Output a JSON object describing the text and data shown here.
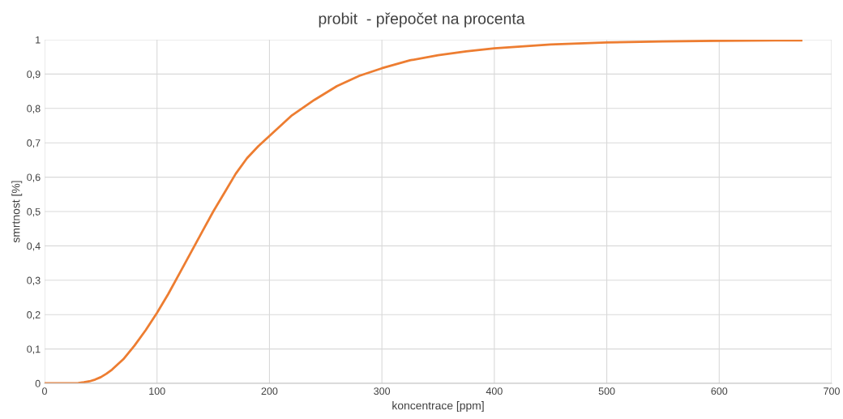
{
  "chart_data": {
    "type": "line",
    "title": "probit  - přepočet na procenta",
    "xlabel": "koncentrace [ppm]",
    "ylabel": "smrtnost [%]",
    "series": [
      {
        "color": "#ed7d31",
        "x": [
          0,
          10,
          20,
          30,
          35,
          40,
          45,
          50,
          55,
          60,
          70,
          80,
          90,
          100,
          110,
          120,
          130,
          140,
          150,
          160,
          170,
          180,
          190,
          200,
          220,
          240,
          260,
          280,
          300,
          325,
          350,
          375,
          400,
          450,
          500,
          550,
          600,
          650,
          673
        ],
        "values": [
          0,
          0,
          0,
          0.001,
          0.003,
          0.006,
          0.011,
          0.018,
          0.028,
          0.04,
          0.07,
          0.11,
          0.155,
          0.205,
          0.26,
          0.32,
          0.38,
          0.44,
          0.5,
          0.555,
          0.61,
          0.655,
          0.69,
          0.72,
          0.78,
          0.825,
          0.865,
          0.895,
          0.917,
          0.94,
          0.955,
          0.966,
          0.975,
          0.986,
          0.992,
          0.995,
          0.997,
          0.998,
          0.998
        ]
      }
    ],
    "xlim": [
      0,
      700
    ],
    "xticks": [
      0,
      100,
      200,
      300,
      400,
      500,
      600,
      700
    ],
    "ylim": [
      0,
      1
    ],
    "yticks": [
      0,
      {
        "value": 0.1,
        "label": "0,1"
      },
      {
        "value": 0.2,
        "label": "0,2"
      },
      {
        "value": 0.3,
        "label": "0,3"
      },
      {
        "value": 0.4,
        "label": "0,4"
      },
      {
        "value": 0.5,
        "label": "0,5"
      },
      {
        "value": 0.6,
        "label": "0,6"
      },
      {
        "value": 0.7,
        "label": "0,7"
      },
      {
        "value": 0.8,
        "label": "0,8"
      },
      {
        "value": 0.9,
        "label": "0,9"
      },
      1
    ],
    "grid": true,
    "marker": "none",
    "line_style": "solid"
  }
}
